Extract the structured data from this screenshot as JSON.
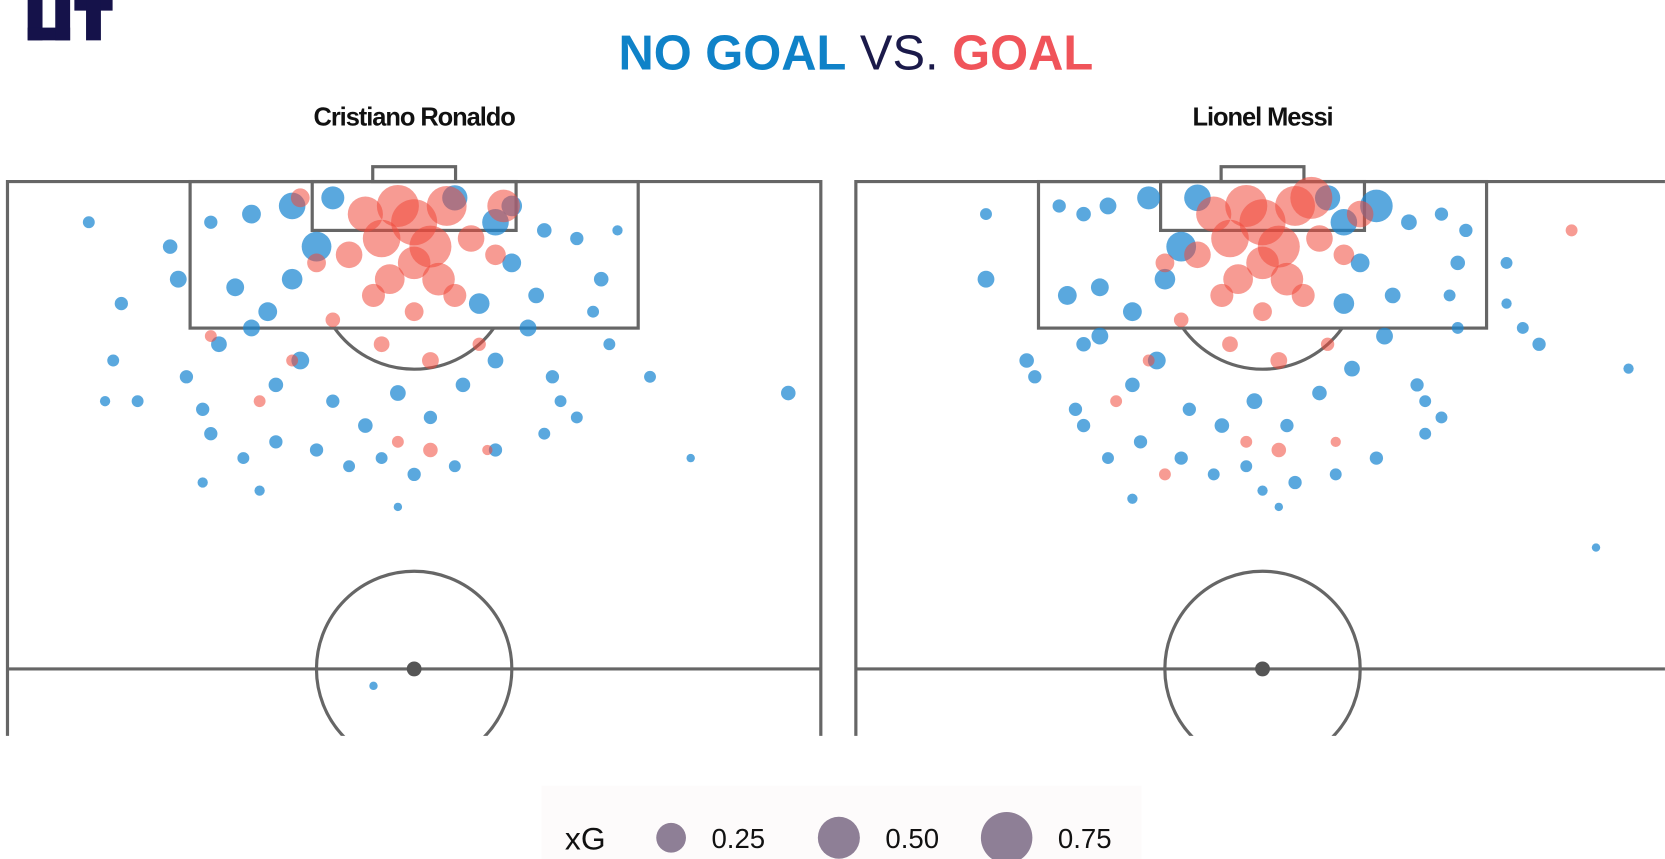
{
  "title_parts": [
    "NO GOAL",
    "VS.",
    "GOAL"
  ],
  "legend": {
    "title": "xG",
    "sizes": [
      0.25,
      {
        "value": 0.5,
        "label": "0.50"
      },
      0.75
    ]
  },
  "chart_data": [
    {
      "type": "scatter",
      "title": "Cristiano Ronaldo",
      "xlim": [
        0,
        100
      ],
      "ylim": [
        0,
        68
      ],
      "series": [
        {
          "name": "NO GOAL",
          "color": "#1b87d1",
          "x": [
            10,
            20,
            14,
            21,
            25,
            30,
            35,
            40,
            55,
            62,
            66,
            70,
            75,
            73,
            72,
            74,
            79,
            84,
            96,
            13,
            16,
            12,
            22,
            26,
            30,
            33,
            36,
            40,
            44,
            48,
            52,
            56,
            60,
            64,
            67,
            70,
            66,
            60,
            55,
            50,
            46,
            42,
            38,
            33,
            29,
            25,
            24,
            31,
            48,
            45,
            35,
            32,
            28,
            62,
            58,
            65,
            38,
            60,
            24,
            68
          ],
          "y": [
            5,
            8,
            15,
            12,
            5,
            4,
            3,
            2,
            2,
            3,
            6,
            7,
            6,
            12,
            16,
            20,
            24,
            34,
            26,
            22,
            27,
            27,
            24,
            20,
            18,
            25,
            22,
            27,
            30,
            26,
            29,
            25,
            22,
            18,
            24,
            29,
            31,
            33,
            35,
            36,
            34,
            35,
            33,
            32,
            34,
            31,
            37,
            38,
            40,
            62,
            12,
            16,
            13,
            10,
            15,
            14,
            8,
            5,
            28,
            27
          ],
          "size": [
            0.04,
            0.06,
            0.05,
            0.08,
            0.05,
            0.1,
            0.2,
            0.15,
            0.18,
            0.12,
            0.06,
            0.05,
            0.03,
            0.06,
            0.04,
            0.04,
            0.04,
            0.02,
            0.06,
            0.04,
            0.04,
            0.03,
            0.05,
            0.07,
            0.08,
            0.06,
            0.09,
            0.05,
            0.06,
            0.07,
            0.05,
            0.06,
            0.07,
            0.08,
            0.05,
            0.04,
            0.04,
            0.05,
            0.04,
            0.05,
            0.04,
            0.04,
            0.05,
            0.05,
            0.04,
            0.05,
            0.03,
            0.03,
            0.02,
            0.02,
            0.12,
            0.1,
            0.09,
            0.1,
            0.12,
            0.07,
            0.25,
            0.2,
            0.05,
            0.04
          ]
        },
        {
          "name": "GOAL",
          "color": "#f0483a",
          "x": [
            48,
            50,
            46,
            52,
            44,
            54,
            50,
            47,
            53,
            42,
            57,
            38,
            60,
            45,
            55,
            50,
            40,
            58,
            52,
            46,
            35,
            52,
            48,
            59,
            31,
            25,
            61,
            36
          ],
          "y": [
            3,
            5,
            7,
            8,
            4,
            3,
            10,
            12,
            12,
            9,
            7,
            10,
            9,
            14,
            14,
            16,
            17,
            20,
            22,
            20,
            22,
            33,
            32,
            33,
            27,
            19,
            3,
            2
          ],
          "size": [
            0.5,
            0.6,
            0.4,
            0.5,
            0.35,
            0.45,
            0.3,
            0.25,
            0.3,
            0.2,
            0.2,
            0.1,
            0.12,
            0.15,
            0.15,
            0.1,
            0.06,
            0.05,
            0.08,
            0.07,
            0.04,
            0.06,
            0.04,
            0.03,
            0.04,
            0.04,
            0.3,
            0.1
          ]
        }
      ]
    },
    {
      "type": "scatter",
      "title": "Lionel Messi",
      "xlim": [
        0,
        100
      ],
      "ylim": [
        0,
        68
      ],
      "series": [
        {
          "name": "NO GOAL",
          "color": "#1b87d1",
          "x": [
            16,
            16,
            21,
            25,
            28,
            31,
            36,
            42,
            58,
            64,
            68,
            72,
            75,
            74,
            73,
            74,
            80,
            82,
            84,
            95,
            91,
            26,
            28,
            22,
            30,
            34,
            37,
            41,
            45,
            49,
            53,
            57,
            61,
            65,
            69,
            72,
            70,
            64,
            59,
            54,
            48,
            44,
            40,
            35,
            31,
            28,
            34,
            50,
            52,
            38,
            34,
            30,
            62,
            60,
            66,
            40,
            60,
            27,
            70,
            80
          ],
          "y": [
            4,
            12,
            22,
            3,
            4,
            3,
            2,
            2,
            2,
            3,
            5,
            4,
            6,
            10,
            14,
            18,
            15,
            18,
            20,
            23,
            45,
            14,
            20,
            24,
            19,
            25,
            22,
            28,
            30,
            27,
            30,
            26,
            23,
            19,
            25,
            29,
            31,
            34,
            36,
            37,
            35,
            36,
            34,
            32,
            34,
            30,
            39,
            38,
            40,
            12,
            16,
            13,
            10,
            15,
            14,
            8,
            5,
            28,
            27,
            10
          ],
          "size": [
            0.04,
            0.08,
            0.06,
            0.05,
            0.06,
            0.08,
            0.15,
            0.2,
            0.18,
            0.3,
            0.07,
            0.05,
            0.05,
            0.06,
            0.04,
            0.04,
            0.03,
            0.04,
            0.05,
            0.03,
            0.02,
            0.1,
            0.06,
            0.05,
            0.08,
            0.06,
            0.09,
            0.05,
            0.06,
            0.07,
            0.05,
            0.06,
            0.07,
            0.08,
            0.05,
            0.04,
            0.04,
            0.05,
            0.04,
            0.05,
            0.04,
            0.04,
            0.05,
            0.05,
            0.04,
            0.05,
            0.03,
            0.03,
            0.02,
            0.12,
            0.1,
            0.09,
            0.1,
            0.12,
            0.07,
            0.25,
            0.2,
            0.05,
            0.04,
            0.04
          ]
        },
        {
          "name": "GOAL",
          "color": "#f0483a",
          "x": [
            48,
            50,
            46,
            52,
            44,
            54,
            50,
            47,
            53,
            42,
            57,
            38,
            60,
            45,
            55,
            50,
            40,
            58,
            52,
            46,
            36,
            52,
            48,
            59,
            32,
            88,
            38,
            62,
            56
          ],
          "y": [
            3,
            5,
            7,
            8,
            4,
            3,
            10,
            12,
            12,
            9,
            7,
            10,
            9,
            14,
            14,
            16,
            17,
            20,
            22,
            20,
            22,
            33,
            32,
            32,
            27,
            6,
            36,
            4,
            2
          ],
          "size": [
            0.5,
            0.6,
            0.4,
            0.5,
            0.35,
            0.45,
            0.3,
            0.25,
            0.3,
            0.2,
            0.2,
            0.1,
            0.12,
            0.15,
            0.15,
            0.1,
            0.06,
            0.05,
            0.08,
            0.07,
            0.04,
            0.06,
            0.04,
            0.03,
            0.04,
            0.04,
            0.04,
            0.2,
            0.5
          ]
        }
      ]
    }
  ]
}
